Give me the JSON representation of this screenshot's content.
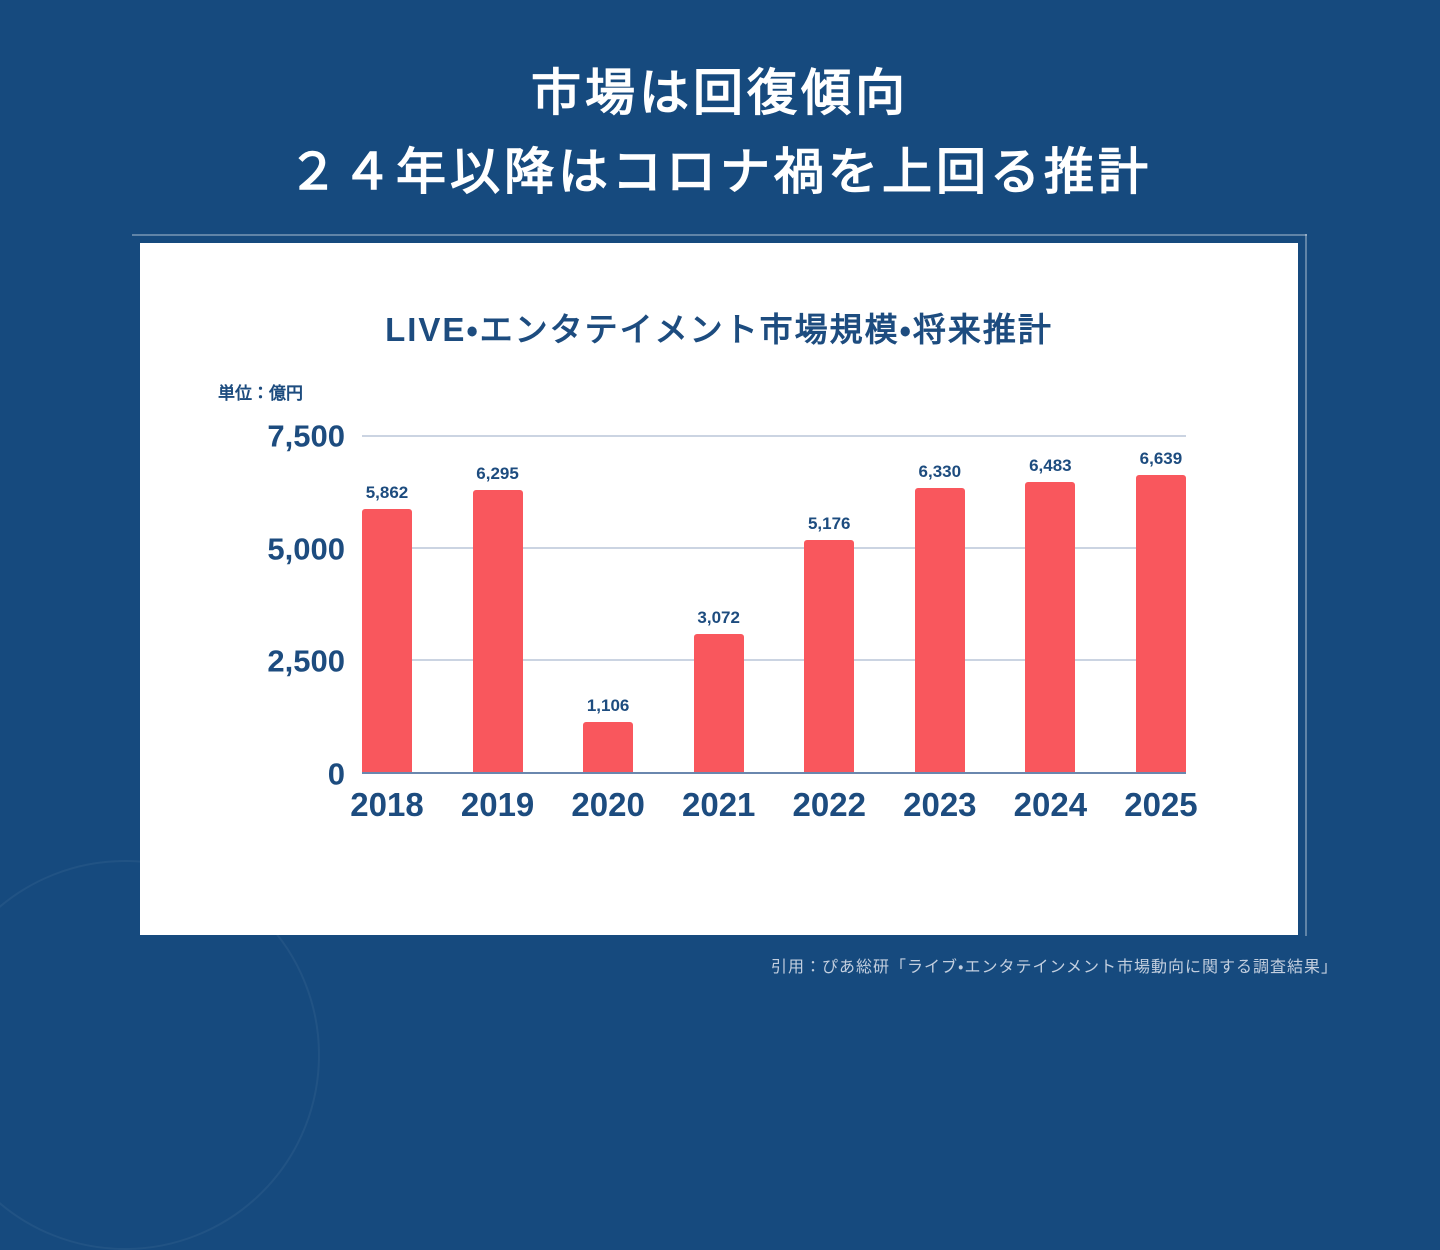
{
  "page": {
    "title_line1": "市場は回復傾向",
    "title_line2": "２４年以降はコロナ禍を上回る推計",
    "source_note": "引用：ぴあ総研「ライブ・エンタテインメント市場動向に関する調査結果」"
  },
  "colors": {
    "background": "#164A7E",
    "card": "#FFFFFF",
    "bar": "#F9575D",
    "text_navy": "#1D4C7F",
    "gridline": "#CBD4E2",
    "baseline": "#6A87AE",
    "title_text": "#FFFFFF",
    "source_text": "#C3CFDF"
  },
  "chart_data": {
    "type": "bar",
    "title": "LIVE・エンタテイメント市場規模・将来推計",
    "unit_label": "単位：億円",
    "categories": [
      "2018",
      "2019",
      "2020",
      "2021",
      "2022",
      "2023",
      "2024",
      "2025"
    ],
    "values": [
      5862,
      6295,
      1106,
      3072,
      5176,
      6330,
      6483,
      6639
    ],
    "value_labels": [
      "5,862",
      "6,295",
      "1,106",
      "3,072",
      "5,176",
      "6,330",
      "6,483",
      "6,639"
    ],
    "xlabel": "",
    "ylabel": "億円",
    "ylim": [
      0,
      7500
    ],
    "yticks": [
      0,
      2500,
      5000,
      7500
    ],
    "ytick_labels": [
      "0",
      "2,500",
      "5,000",
      "7,500"
    ],
    "grid": true,
    "legend": false,
    "bar_color": "#F9575D"
  }
}
